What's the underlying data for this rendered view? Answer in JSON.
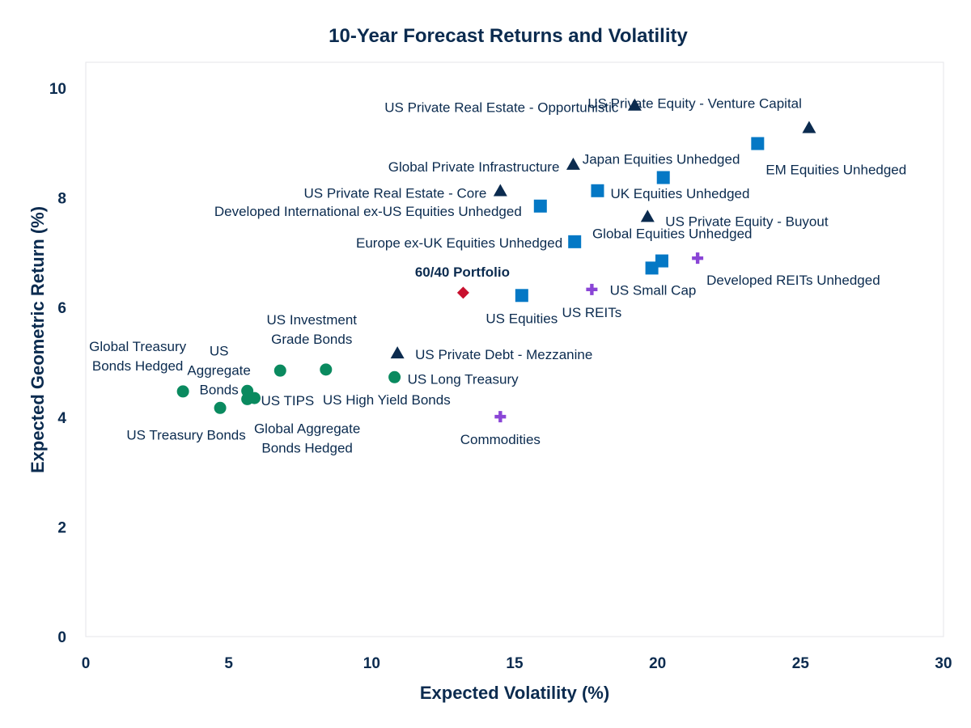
{
  "chart_data": {
    "type": "scatter",
    "title": "10-Year Forecast Returns and Volatility",
    "xlabel": "Expected Volatility (%)",
    "ylabel": "Expected Geometric Return (%)",
    "xlim": [
      0,
      30
    ],
    "ylim": [
      0,
      10.4
    ],
    "xticks": [
      "0",
      "5",
      "10",
      "15",
      "20",
      "25",
      "30"
    ],
    "yticks": [
      "0",
      "2",
      "4",
      "6",
      "8",
      "10"
    ],
    "grid": false,
    "legend": "none",
    "colors": {
      "fixed_income": "#0a8a5f",
      "equities": "#0478c5",
      "private": "#0b2b4f",
      "real_assets": "#8a45d6",
      "portfolio": "#c8102e",
      "text": "#0b2b4f"
    },
    "points": [
      {
        "label": "US Treasury Bonds",
        "x": 4.7,
        "y": 4.17,
        "marker": "circle",
        "group": "fixed_income"
      },
      {
        "label": "Global Treasury Bonds Hedged",
        "x": 3.4,
        "y": 4.47,
        "marker": "circle",
        "group": "fixed_income"
      },
      {
        "label": "US Aggregate Bonds",
        "x": 5.65,
        "y": 4.48,
        "marker": "circle",
        "group": "fixed_income"
      },
      {
        "label": "Global Aggregate Bonds Hedged",
        "x": 5.65,
        "y": 4.33,
        "marker": "circle",
        "group": "fixed_income"
      },
      {
        "label": "US TIPS",
        "x": 5.9,
        "y": 4.35,
        "marker": "circle",
        "group": "fixed_income"
      },
      {
        "label": "US Investment Grade Bonds",
        "x": 6.8,
        "y": 4.85,
        "marker": "circle",
        "group": "fixed_income"
      },
      {
        "label": "US High Yield Bonds",
        "x": 8.4,
        "y": 4.87,
        "marker": "circle",
        "group": "fixed_income"
      },
      {
        "label": "US Long Treasury",
        "x": 10.8,
        "y": 4.73,
        "marker": "circle",
        "group": "fixed_income"
      },
      {
        "label": "US Private Debt - Mezzanine",
        "x": 10.9,
        "y": 5.16,
        "marker": "triangle",
        "group": "private"
      },
      {
        "label": "60/40 Portfolio",
        "x": 13.2,
        "y": 6.27,
        "marker": "diamond",
        "group": "portfolio"
      },
      {
        "label": "Commodities",
        "x": 14.5,
        "y": 4.01,
        "marker": "plus",
        "group": "real_assets"
      },
      {
        "label": "US Equities",
        "x": 15.25,
        "y": 6.22,
        "marker": "square",
        "group": "equities"
      },
      {
        "label": "US REITs",
        "x": 17.7,
        "y": 6.33,
        "marker": "plus",
        "group": "real_assets"
      },
      {
        "label": "Europe ex-UK Equities Unhedged",
        "x": 17.1,
        "y": 7.2,
        "marker": "square",
        "group": "equities"
      },
      {
        "label": "Developed International ex-US Equities Unhedged",
        "x": 15.9,
        "y": 7.85,
        "marker": "square",
        "group": "equities"
      },
      {
        "label": "UK Equities Unhedged",
        "x": 17.9,
        "y": 8.13,
        "marker": "square",
        "group": "equities"
      },
      {
        "label": "US Small Cap",
        "x": 19.8,
        "y": 6.72,
        "marker": "square",
        "group": "equities"
      },
      {
        "label": "Global Equities Unhedged",
        "x": 20.15,
        "y": 6.85,
        "marker": "square",
        "group": "equities"
      },
      {
        "label": "Developed REITs Unhedged",
        "x": 21.4,
        "y": 6.9,
        "marker": "plus",
        "group": "real_assets"
      },
      {
        "label": "US Private Equity - Buyout",
        "x": 19.65,
        "y": 7.65,
        "marker": "triangle",
        "group": "private"
      },
      {
        "label": "Japan Equities Unhedged",
        "x": 20.2,
        "y": 8.37,
        "marker": "square",
        "group": "equities"
      },
      {
        "label": "EM Equities Unhedged",
        "x": 23.5,
        "y": 8.99,
        "marker": "square",
        "group": "equities"
      },
      {
        "label": "US Private Real Estate - Core",
        "x": 14.5,
        "y": 8.12,
        "marker": "triangle",
        "group": "private"
      },
      {
        "label": "Global Private Infrastructure",
        "x": 17.05,
        "y": 8.6,
        "marker": "triangle",
        "group": "private"
      },
      {
        "label": "US Private Real Estate - Opportunistic",
        "x": 19.2,
        "y": 9.68,
        "marker": "triangle",
        "group": "private"
      },
      {
        "label": "US Private Equity - Venture Capital",
        "x": 25.3,
        "y": 9.27,
        "marker": "triangle",
        "group": "private"
      }
    ]
  }
}
